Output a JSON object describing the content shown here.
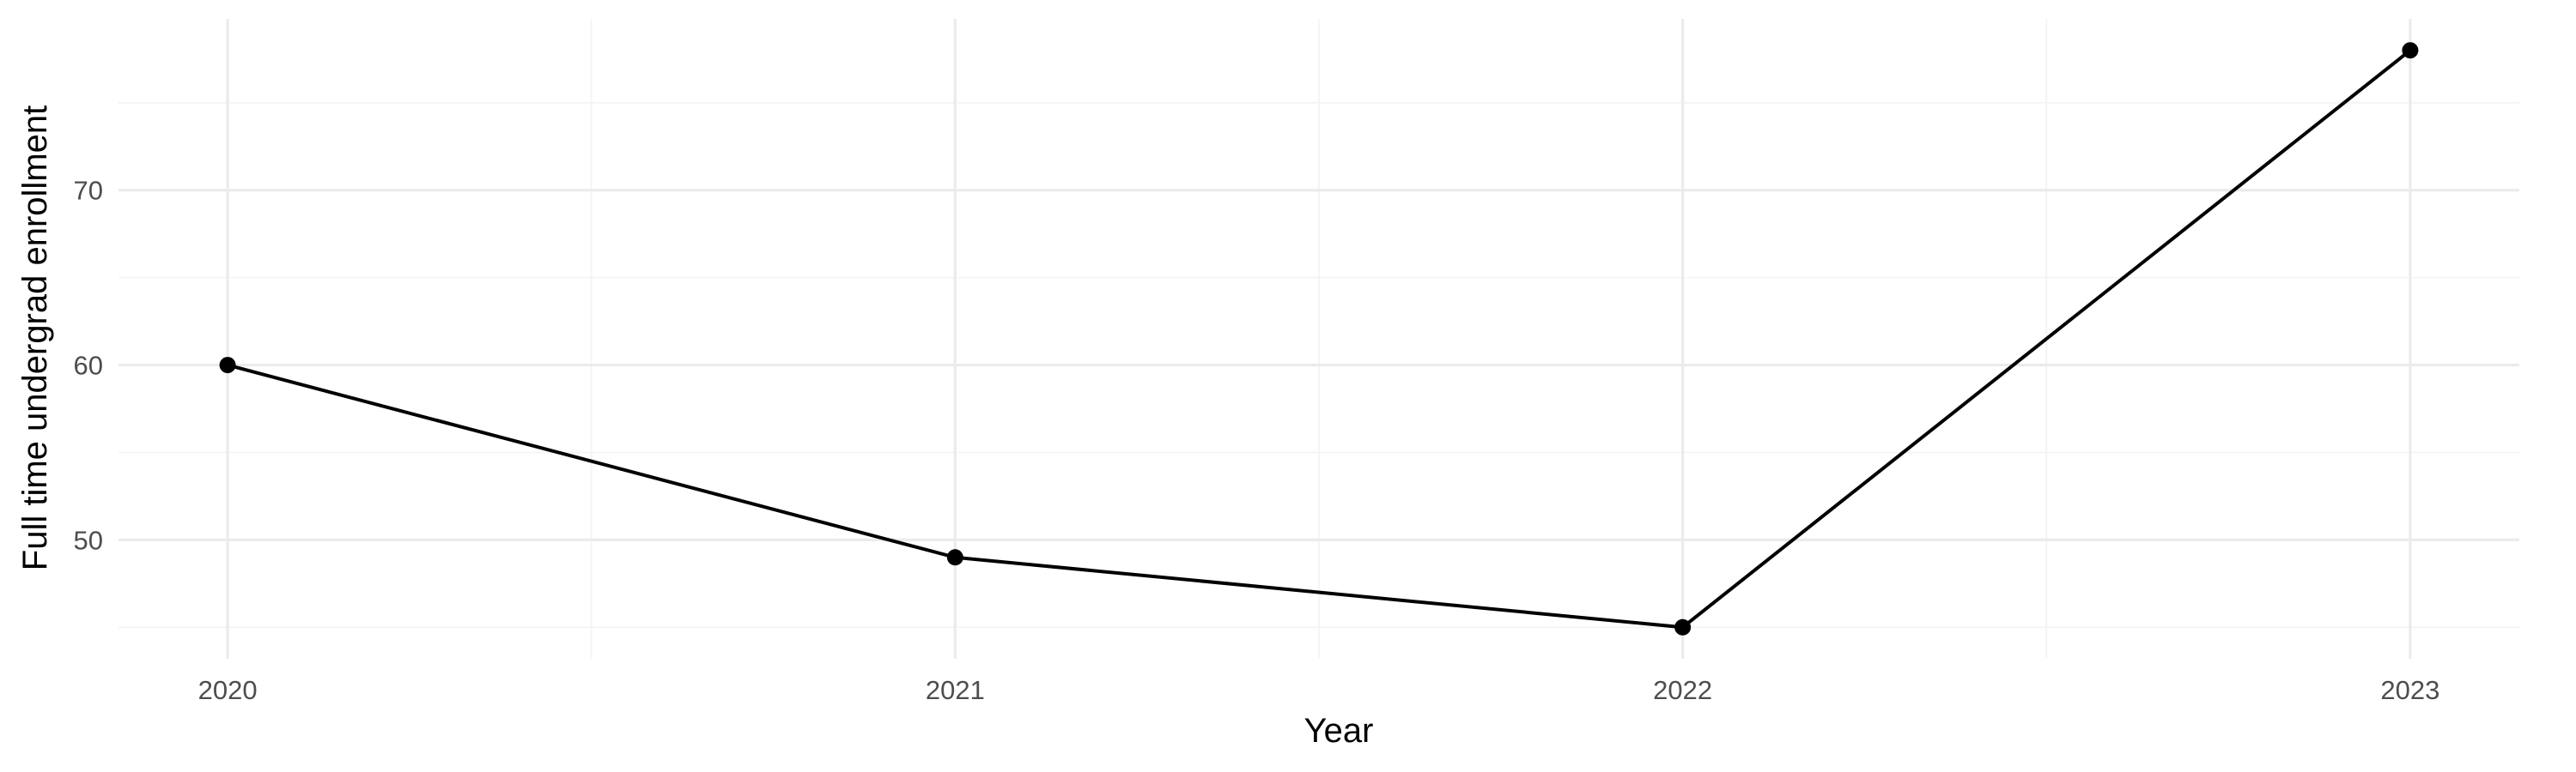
{
  "chart_data": {
    "type": "line",
    "title": "",
    "xlabel": "Year",
    "ylabel": "Full time undergrad enrollment",
    "x": [
      2020,
      2021,
      2022,
      2023
    ],
    "x_tick_labels": [
      "2020",
      "2021",
      "2022",
      "2023"
    ],
    "series": [
      {
        "values": [
          60,
          49,
          45,
          78
        ]
      }
    ],
    "xlim": [
      2019.85,
      2023.15
    ],
    "ylim": [
      43.2,
      79.8
    ],
    "y_ticks": [
      50,
      60,
      70
    ],
    "y_minor_ticks": [
      45,
      55,
      65,
      75
    ],
    "x_minor_ticks": [
      2020.5,
      2021.5,
      2022.5
    ],
    "grid": true,
    "legend": "none",
    "colors": {
      "line": "#000000",
      "grid_major": "#ebebeb",
      "grid_minor": "#f4f4f4",
      "tick_text": "#4d4d4d"
    }
  }
}
